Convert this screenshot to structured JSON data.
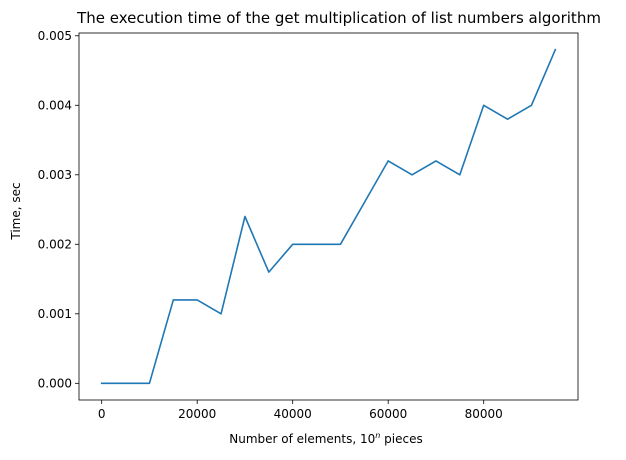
{
  "chart_data": {
    "type": "line",
    "title": "The execution time of the get multiplication of list numbers algorithm",
    "xlabel_prefix": "Number of elements, 10",
    "xlabel_sup": "n",
    "xlabel_suffix": " pieces",
    "ylabel": "Time, sec",
    "xlim": [
      -4750,
      99750
    ],
    "ylim": [
      -0.00024,
      0.00504
    ],
    "xticks": [
      0,
      20000,
      40000,
      60000,
      80000
    ],
    "xtick_labels": [
      "0",
      "20000",
      "40000",
      "60000",
      "80000"
    ],
    "yticks": [
      0,
      0.001,
      0.002,
      0.003,
      0.004,
      0.005
    ],
    "ytick_labels": [
      "0.000",
      "0.001",
      "0.002",
      "0.003",
      "0.004",
      "0.005"
    ],
    "grid": false,
    "series": [
      {
        "color": "#1f77b4",
        "x": [
          0,
          5000,
          10000,
          15000,
          20000,
          25000,
          30000,
          35000,
          40000,
          45000,
          50000,
          55000,
          60000,
          65000,
          70000,
          75000,
          80000,
          85000,
          90000,
          95000
        ],
        "y": [
          0,
          0,
          0,
          0.0012,
          0.0012,
          0.001,
          0.0024,
          0.0016,
          0.002,
          0.002,
          0.002,
          0.0026,
          0.0032,
          0.003,
          0.0032,
          0.003,
          0.004,
          0.0038,
          0.004,
          0.0048
        ]
      }
    ]
  }
}
